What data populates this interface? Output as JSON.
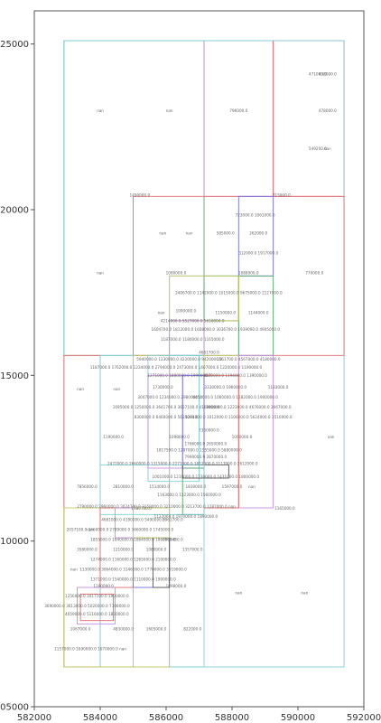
{
  "chart_data": {
    "type": "scatter",
    "title": "",
    "xlabel": "",
    "ylabel": "",
    "xlim": [
      582000,
      592000
    ],
    "ylim": [
      4505000,
      4526000
    ],
    "grid": false,
    "xticks": [
      "582000",
      "584000",
      "586000",
      "588000",
      "590000",
      "592000"
    ],
    "yticks": [
      "4505000",
      "4510000",
      "4515000",
      "4520000",
      "4525000"
    ],
    "rectangles": [
      {
        "x0": 582900,
        "x1": 587150,
        "y0": 4515600,
        "y1": 4525100,
        "color": "#55a868"
      },
      {
        "x0": 587150,
        "x1": 589250,
        "y0": 4520400,
        "y1": 4525100,
        "color": "#c88ee0"
      },
      {
        "x0": 589250,
        "x1": 591400,
        "y0": 4520400,
        "y1": 4525100,
        "color": "#e86a6a"
      },
      {
        "x0": 582900,
        "x1": 591400,
        "y0": 4506200,
        "y1": 4525100,
        "color": "#7fcfdc"
      },
      {
        "x0": 585000,
        "x1": 591400,
        "y0": 4515600,
        "y1": 4520400,
        "color": "#e86a6a"
      },
      {
        "x0": 588200,
        "x1": 589250,
        "y0": 4518000,
        "y1": 4520400,
        "color": "#7070e8"
      },
      {
        "x0": 586100,
        "x1": 588200,
        "y0": 4515600,
        "y1": 4518000,
        "color": "#7fcfdc"
      },
      {
        "x0": 587150,
        "x1": 588200,
        "y0": 4516650,
        "y1": 4518000,
        "color": "#55a868"
      },
      {
        "x0": 588200,
        "x1": 589250,
        "y0": 4515600,
        "y1": 4518000,
        "color": "#55a868"
      },
      {
        "x0": 586100,
        "x1": 588200,
        "y0": 4516650,
        "y1": 4518000,
        "color": "#c8c860"
      },
      {
        "x0": 586100,
        "x1": 587150,
        "y0": 4515000,
        "y1": 4516650,
        "color": "#c88ee0"
      },
      {
        "x0": 582900,
        "x1": 584000,
        "y0": 4506200,
        "y1": 4515600,
        "color": "#e86a6a"
      },
      {
        "x0": 584000,
        "x1": 585000,
        "y0": 4506200,
        "y1": 4515600,
        "color": "#7fcfdc"
      },
      {
        "x0": 585000,
        "x1": 586100,
        "y0": 4506200,
        "y1": 4515600,
        "color": "#c8c860"
      },
      {
        "x0": 586100,
        "x1": 587150,
        "y0": 4506200,
        "y1": 4515600,
        "color": "#7fcfdc"
      },
      {
        "x0": 585450,
        "x1": 587000,
        "y0": 4511800,
        "y1": 4515600,
        "color": "#7fcfdc"
      },
      {
        "x0": 587150,
        "x1": 588200,
        "y0": 4511000,
        "y1": 4515600,
        "color": "#c8c860"
      },
      {
        "x0": 588200,
        "x1": 589250,
        "y0": 4511000,
        "y1": 4515600,
        "color": "#c88ee0"
      },
      {
        "x0": 587150,
        "x1": 588200,
        "y0": 4511000,
        "y1": 4515000,
        "color": "#e86a6a"
      },
      {
        "x0": 585450,
        "x1": 586500,
        "y0": 4512200,
        "y1": 4515000,
        "color": "#c88ee0"
      },
      {
        "x0": 586500,
        "x1": 587150,
        "y0": 4512200,
        "y1": 4515000,
        "color": "#7070e8"
      },
      {
        "x0": 586500,
        "x1": 587150,
        "y0": 4510800,
        "y1": 4512200,
        "color": "#55a868"
      },
      {
        "x0": 586500,
        "x1": 587900,
        "y0": 4511900,
        "y1": 4512300,
        "color": "#555555"
      },
      {
        "x0": 584000,
        "x1": 587150,
        "y0": 4510800,
        "y1": 4512300,
        "color": "#7fcfdc"
      },
      {
        "x0": 582900,
        "x1": 585000,
        "y0": 4506200,
        "y1": 4511000,
        "color": "#c8c860"
      },
      {
        "x0": 584000,
        "x1": 585000,
        "y0": 4508600,
        "y1": 4511000,
        "color": "#e86a6a"
      },
      {
        "x0": 584450,
        "x1": 585000,
        "y0": 4510100,
        "y1": 4511000,
        "color": "#c88ee0"
      },
      {
        "x0": 585000,
        "x1": 586100,
        "y0": 4508600,
        "y1": 4510100,
        "color": "#7070e8"
      },
      {
        "x0": 585600,
        "x1": 586100,
        "y0": 4508600,
        "y1": 4510100,
        "color": "#555555"
      },
      {
        "x0": 585000,
        "x1": 586100,
        "y0": 4510100,
        "y1": 4511000,
        "color": "#c8c860"
      },
      {
        "x0": 583300,
        "x1": 584450,
        "y0": 4507500,
        "y1": 4508600,
        "color": "#c88ee0"
      },
      {
        "x0": 583400,
        "x1": 584400,
        "y0": 4507600,
        "y1": 4508400,
        "color": "#e86a6a"
      }
    ],
    "annotations": [
      {
        "x": 590600,
        "y": 4524050,
        "text": "471000.0"
      },
      {
        "x": 590900,
        "y": 4524050,
        "text": "438000.0"
      },
      {
        "x": 584000,
        "y": 4522950,
        "text": "nan"
      },
      {
        "x": 586100,
        "y": 4522950,
        "text": "nan"
      },
      {
        "x": 588200,
        "y": 4522950,
        "text": "796000.0"
      },
      {
        "x": 590900,
        "y": 4522950,
        "text": "478000.0"
      },
      {
        "x": 590600,
        "y": 4521800,
        "text": "549200.0"
      },
      {
        "x": 590900,
        "y": 4521800,
        "text": "nan"
      },
      {
        "x": 585200,
        "y": 4520400,
        "text": "1490000.0"
      },
      {
        "x": 589500,
        "y": 4520400,
        "text": "715000.0"
      },
      {
        "x": 588700,
        "y": 4519800,
        "text": "723000.0  1061000.0"
      },
      {
        "x": 585900,
        "y": 4519250,
        "text": "nan"
      },
      {
        "x": 586700,
        "y": 4519250,
        "text": "nan"
      },
      {
        "x": 587800,
        "y": 4519250,
        "text": "585000.0"
      },
      {
        "x": 588800,
        "y": 4519250,
        "text": "262000.0"
      },
      {
        "x": 588800,
        "y": 4518650,
        "text": "312000.0  1917000.0"
      },
      {
        "x": 584000,
        "y": 4518050,
        "text": "nan"
      },
      {
        "x": 586300,
        "y": 4518050,
        "text": "1080000.0"
      },
      {
        "x": 588500,
        "y": 4518050,
        "text": "1088000.0"
      },
      {
        "x": 590500,
        "y": 4518050,
        "text": "770000.0"
      },
      {
        "x": 587900,
        "y": 4517450,
        "text": "2406700.0 1142000.0 1015000.0 9675000.0 2127000.0"
      },
      {
        "x": 586600,
        "y": 4516900,
        "text": "1090000.0"
      },
      {
        "x": 585850,
        "y": 4516850,
        "text": "nan"
      },
      {
        "x": 587800,
        "y": 4516850,
        "text": "1150000.0"
      },
      {
        "x": 588800,
        "y": 4516850,
        "text": "1144000.0"
      },
      {
        "x": 586800,
        "y": 4516600,
        "text": "4214000.0 5527000.0 5618000.0"
      },
      {
        "x": 587500,
        "y": 4516350,
        "text": "1604700.0 1812000.0 1608000.0  3036700.0 1939000.0 4905000.0"
      },
      {
        "x": 586800,
        "y": 4516050,
        "text": "1187000.0 1180000.0 1165000.0"
      },
      {
        "x": 587300,
        "y": 4515650,
        "text": "4661700.0"
      },
      {
        "x": 586400,
        "y": 4515450,
        "text": "5940000.0 1330000.0 4220000.0 9420000.0"
      },
      {
        "x": 588500,
        "y": 4515450,
        "text": "1561700.0 4567000.0 4180000.0"
      },
      {
        "x": 586300,
        "y": 4515200,
        "text": "1187000.0 1762000.0 1234000.0 2794000.0 2473000.0 1407000.0 1220000.0 1190000.0"
      },
      {
        "x": 586400,
        "y": 4514950,
        "text": "1271000.0 1880000.0 1990000.0"
      },
      {
        "x": 588100,
        "y": 4514950,
        "text": "4870000.0 1194000.0 1390000.0"
      },
      {
        "x": 583400,
        "y": 4514550,
        "text": "nan"
      },
      {
        "x": 584500,
        "y": 4514550,
        "text": "nan"
      },
      {
        "x": 585900,
        "y": 4514600,
        "text": "1730000.0"
      },
      {
        "x": 587800,
        "y": 4514600,
        "text": "3330000.0 1960000.0"
      },
      {
        "x": 589400,
        "y": 4514600,
        "text": "1183000.0"
      },
      {
        "x": 586100,
        "y": 4514300,
        "text": "3047000.0 1234000.0 2980000.0"
      },
      {
        "x": 588100,
        "y": 4514300,
        "text": "6454000.0 1060000.0 1182000.0 1940000.0"
      },
      {
        "x": 586000,
        "y": 4514000,
        "text": "1095000.0 1250000.0 3641700.0 3657100.0 4189000.0"
      },
      {
        "x": 588500,
        "y": 4514000,
        "text": "1000000.0 1223000.0 4676000.0 2667000.0"
      },
      {
        "x": 586000,
        "y": 4513700,
        "text": "8300000.0 6460000.0 5620000.0"
      },
      {
        "x": 588200,
        "y": 4513700,
        "text": "1291000.0 1012000.0 1106000.0 5624000.0 3510000.0"
      },
      {
        "x": 587300,
        "y": 4513300,
        "text": "7350000.0"
      },
      {
        "x": 584400,
        "y": 4513100,
        "text": "1190000.0"
      },
      {
        "x": 586400,
        "y": 4513100,
        "text": "1098000.0"
      },
      {
        "x": 588300,
        "y": 4513100,
        "text": "1000000.0"
      },
      {
        "x": 591000,
        "y": 4513100,
        "text": "nan"
      },
      {
        "x": 587200,
        "y": 4512900,
        "text": "1766000.0 2650000.0"
      },
      {
        "x": 587000,
        "y": 4512700,
        "text": "1817500.0 1287000.0 1555000.0 5880000.0"
      },
      {
        "x": 587200,
        "y": 4512500,
        "text": "7990000.0 2870000.0"
      },
      {
        "x": 586500,
        "y": 4512300,
        "text": "2472000.0 2660000.0 1315000.0 2271000.0 1812000.0 2117000.0 2612000.0"
      },
      {
        "x": 587200,
        "y": 4511900,
        "text": "1001000.0 1210000.0 1230000.0 1431000.0 1800000.0"
      },
      {
        "x": 583600,
        "y": 4511600,
        "text": "7856000.0"
      },
      {
        "x": 584700,
        "y": 4511600,
        "text": "2810000.0"
      },
      {
        "x": 585800,
        "y": 4511600,
        "text": "1514000.0"
      },
      {
        "x": 586900,
        "y": 4511600,
        "text": "1830000.0"
      },
      {
        "x": 588000,
        "y": 4511600,
        "text": "1597000.0"
      },
      {
        "x": 588600,
        "y": 4511600,
        "text": "nan"
      },
      {
        "x": 586700,
        "y": 4511350,
        "text": "1163000.0 1323000.0 1560000.0"
      },
      {
        "x": 585700,
        "y": 4511000,
        "text": "2790000.0 2960000.0 3024700.0 3150000.0 3210000.0 3213700.0  1287000.0 nan"
      },
      {
        "x": 586600,
        "y": 4510700,
        "text": "1122000.0 1970000.0 1890000.0"
      },
      {
        "x": 585250,
        "y": 4510950,
        "text": "1180700.0"
      },
      {
        "x": 589600,
        "y": 4510950,
        "text": "1165000.0"
      },
      {
        "x": 585000,
        "y": 4510600,
        "text": "4681000.0 4190000.0 5490000.0"
      },
      {
        "x": 586200,
        "y": 4510600,
        "text": "5962700.0"
      },
      {
        "x": 583700,
        "y": 4510300,
        "text": "nan"
      },
      {
        "x": 584600,
        "y": 4510300,
        "text": "2057100.0 2460000.0 2789000.0 3660000.0 1745000.0"
      },
      {
        "x": 585000,
        "y": 4510000,
        "text": "1855000.0 1840000.0 1864000.0 1860000.0"
      },
      {
        "x": 586200,
        "y": 4510000,
        "text": "3567400.0"
      },
      {
        "x": 583600,
        "y": 4509700,
        "text": "3580000.0"
      },
      {
        "x": 584700,
        "y": 4509700,
        "text": "1210000.0"
      },
      {
        "x": 585700,
        "y": 4509700,
        "text": "1080000.0"
      },
      {
        "x": 586800,
        "y": 4509700,
        "text": "1357000.0"
      },
      {
        "x": 585000,
        "y": 4509400,
        "text": "1274000.0 1160000.0 1265000.0 2100000.0"
      },
      {
        "x": 585000,
        "y": 4509100,
        "text": "1130000.0 3064000.0 3146000.0 1770000.0 3019000.0"
      },
      {
        "x": 583200,
        "y": 4509100,
        "text": "nan"
      },
      {
        "x": 585000,
        "y": 4508800,
        "text": "1371000.0 1540000.0 1110000.0 1900000.0"
      },
      {
        "x": 586300,
        "y": 4508600,
        "text": "1898000.0"
      },
      {
        "x": 584100,
        "y": 4508600,
        "text": "1280000.0"
      },
      {
        "x": 588200,
        "y": 4508400,
        "text": "nan"
      },
      {
        "x": 590200,
        "y": 4508400,
        "text": "nan"
      },
      {
        "x": 583900,
        "y": 4508300,
        "text": "1256000.0 3417100.0 1900000.0"
      },
      {
        "x": 583600,
        "y": 4508000,
        "text": "3690000.0 3613000.0 5020000.0 7308000.0"
      },
      {
        "x": 583900,
        "y": 4507750,
        "text": "4659000.0 5116000.0 1830000.0"
      },
      {
        "x": 583400,
        "y": 4507300,
        "text": "1067000.0"
      },
      {
        "x": 584700,
        "y": 4507300,
        "text": "4830000.0"
      },
      {
        "x": 585700,
        "y": 4507300,
        "text": "1605000.0"
      },
      {
        "x": 586800,
        "y": 4507300,
        "text": "822000.0"
      },
      {
        "x": 583700,
        "y": 4506700,
        "text": "1157000.0 1690000.0 1670000.0 nan"
      }
    ]
  }
}
